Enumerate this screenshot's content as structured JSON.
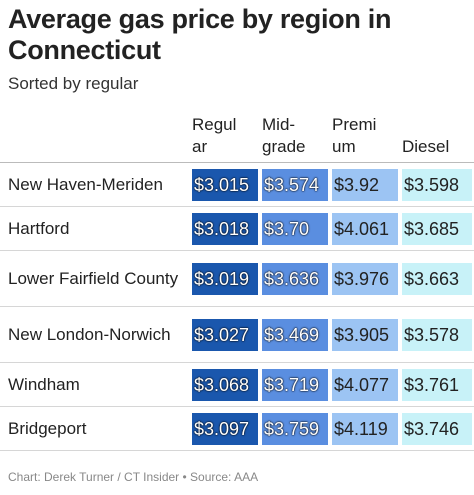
{
  "title": "Average gas price by region in Connecticut",
  "subtitle": "Sorted by regular",
  "footer": "Chart: Derek Turner / CT Insider • Source: AAA",
  "chart_data": {
    "type": "table",
    "columns": [
      "Regul ar",
      "Mid- grade",
      "Premi um",
      "Diesel"
    ],
    "column_lines": [
      [
        "Regul",
        "ar"
      ],
      [
        "Mid-",
        "grade"
      ],
      [
        "Premi",
        "um"
      ],
      [
        "Diesel"
      ]
    ],
    "rows": [
      {
        "region": "New Haven-Meriden",
        "values": [
          "$3.015",
          "$3.574",
          "$3.92",
          "$3.598"
        ]
      },
      {
        "region": "Hartford",
        "values": [
          "$3.018",
          "$3.70",
          "$4.061",
          "$3.685"
        ]
      },
      {
        "region": "Lower Fairfield County",
        "values": [
          "$3.019",
          "$3.636",
          "$3.976",
          "$3.663"
        ]
      },
      {
        "region": "New London-Norwich",
        "values": [
          "$3.027",
          "$3.469",
          "$3.905",
          "$3.578"
        ]
      },
      {
        "region": "Windham",
        "values": [
          "$3.068",
          "$3.719",
          "$4.077",
          "$3.761"
        ]
      },
      {
        "region": "Bridgeport",
        "values": [
          "$3.097",
          "$3.759",
          "$4.119",
          "$3.746"
        ]
      }
    ],
    "column_colors": [
      "#1a57ad",
      "#5a8ee0",
      "#9cc4f3",
      "#c8f2f8"
    ]
  }
}
